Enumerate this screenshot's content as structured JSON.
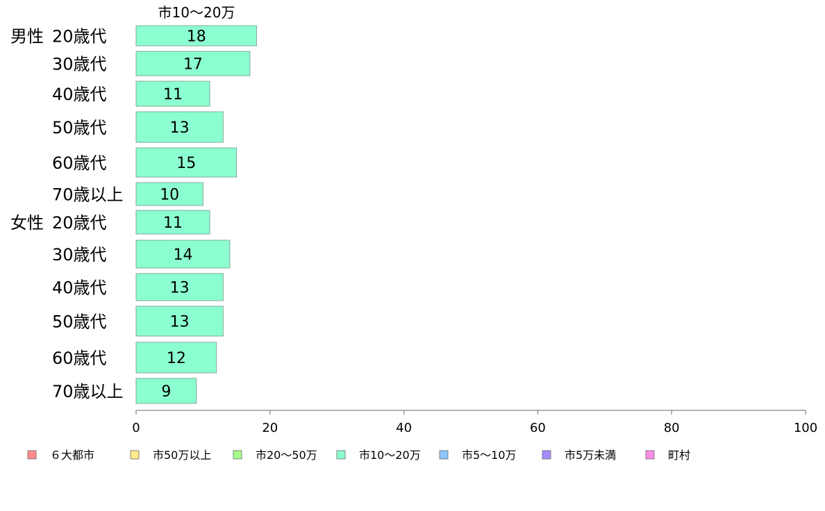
{
  "chart_data": {
    "type": "bar",
    "orientation": "horizontal",
    "series_title": "市10〜20万",
    "groups": [
      {
        "label": "男性",
        "rows": [
          {
            "age": "20歳代",
            "value": 18
          },
          {
            "age": "30歳代",
            "value": 17
          },
          {
            "age": "40歳代",
            "value": 11
          },
          {
            "age": "50歳代",
            "value": 13
          },
          {
            "age": "60歳代",
            "value": 15
          },
          {
            "age": "70歳以上",
            "value": 10
          }
        ]
      },
      {
        "label": "女性",
        "rows": [
          {
            "age": "20歳代",
            "value": 11
          },
          {
            "age": "30歳代",
            "value": 14
          },
          {
            "age": "40歳代",
            "value": 13
          },
          {
            "age": "50歳代",
            "value": 13
          },
          {
            "age": "60歳代",
            "value": 12
          },
          {
            "age": "70歳以上",
            "value": 9
          }
        ]
      }
    ],
    "xlim": [
      0,
      100
    ],
    "xticks": [
      "0",
      "20",
      "40",
      "60",
      "80",
      "100"
    ],
    "grid": false,
    "legend_position": "bottom",
    "bar_color": "#8cffd0",
    "legend": [
      {
        "label": "６大都市",
        "color": "#ff8c8c"
      },
      {
        "label": "市50万以上",
        "color": "#ffe98c"
      },
      {
        "label": "市20〜50万",
        "color": "#a6ff8c"
      },
      {
        "label": "市10〜20万",
        "color": "#8cffd0"
      },
      {
        "label": "市5〜10万",
        "color": "#8cc6ff"
      },
      {
        "label": "市5万未満",
        "color": "#a68cff"
      },
      {
        "label": "町村",
        "color": "#ff8ce9"
      }
    ]
  }
}
